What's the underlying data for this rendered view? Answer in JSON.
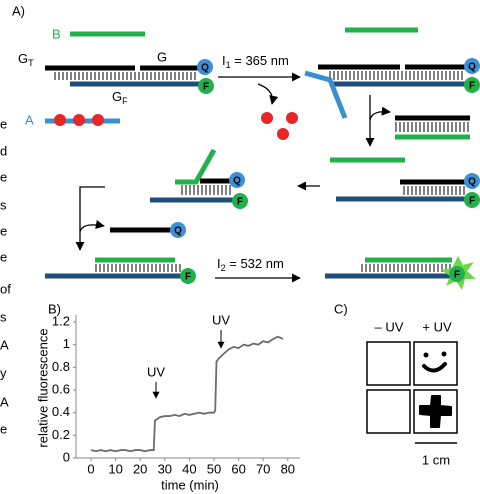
{
  "margin_text": [
    "e",
    "d",
    "e",
    "s",
    "e",
    "e",
    "of",
    "s",
    "A",
    "y",
    "A",
    "e"
  ],
  "panel_a": {
    "label": "A)",
    "strand_b": "B",
    "strand_g": "G",
    "strand_gt": {
      "main": "G",
      "sub": "T"
    },
    "strand_gf": {
      "main": "G",
      "sub": "F"
    },
    "strand_a": "A",
    "quencher": "Q",
    "fluorophore": "F",
    "step1": {
      "main": "I",
      "sub": "1",
      "rest": " = 365 nm"
    },
    "step2": {
      "main": "I",
      "sub": "2",
      "rest": " = 532 nm"
    }
  },
  "chart_data": {
    "type": "line",
    "panel_label": "B)",
    "xlabel": "time (min)",
    "ylabel": "relative fluorescence",
    "x": [
      0,
      2,
      4,
      6,
      8,
      10,
      12,
      14,
      16,
      18,
      20,
      22,
      24,
      25.5,
      26,
      28,
      30,
      32,
      34,
      36,
      38,
      40,
      42,
      44,
      46,
      48,
      50,
      50.5,
      51,
      52,
      54,
      56,
      58,
      60,
      62,
      64,
      66,
      68,
      70,
      72,
      74,
      76,
      78
    ],
    "series": [
      {
        "color": "#6b6b6b",
        "values": [
          0.07,
          0.06,
          0.07,
          0.06,
          0.07,
          0.06,
          0.07,
          0.07,
          0.06,
          0.07,
          0.07,
          0.06,
          0.07,
          0.07,
          0.33,
          0.36,
          0.37,
          0.37,
          0.38,
          0.37,
          0.39,
          0.38,
          0.39,
          0.4,
          0.39,
          0.4,
          0.4,
          0.42,
          0.85,
          0.88,
          0.92,
          0.96,
          0.98,
          0.97,
          1.0,
          0.99,
          1.01,
          1.0,
          1.03,
          1.02,
          1.05,
          1.07,
          1.05
        ]
      }
    ],
    "xlim": [
      -5,
      85
    ],
    "ylim": [
      0,
      1.2
    ],
    "xticks": [
      0,
      10,
      20,
      30,
      40,
      50,
      60,
      70,
      80
    ],
    "yticks": [
      0,
      0.2,
      0.4,
      0.6,
      0.8,
      1,
      1.2
    ],
    "annotations": [
      "UV",
      "UV"
    ]
  },
  "panel_c": {
    "label": "C)",
    "columns": [
      "– UV",
      "+ UV"
    ],
    "scale": "1 cm"
  }
}
